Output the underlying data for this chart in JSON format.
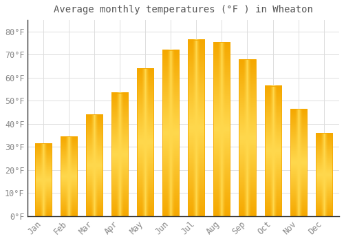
{
  "title": "Average monthly temperatures (°F ) in Wheaton",
  "months": [
    "Jan",
    "Feb",
    "Mar",
    "Apr",
    "May",
    "Jun",
    "Jul",
    "Aug",
    "Sep",
    "Oct",
    "Nov",
    "Dec"
  ],
  "values": [
    31.5,
    34.5,
    44.0,
    53.5,
    64.0,
    72.0,
    76.5,
    75.5,
    68.0,
    56.5,
    46.5,
    36.0
  ],
  "bar_color_center": "#FFD84D",
  "bar_color_edge": "#F5A800",
  "background_color": "#FFFFFF",
  "grid_color": "#DDDDDD",
  "text_color": "#888888",
  "spine_color": "#333333",
  "ylim": [
    0,
    85
  ],
  "yticks": [
    0,
    10,
    20,
    30,
    40,
    50,
    60,
    70,
    80
  ],
  "title_fontsize": 10,
  "tick_fontsize": 8.5,
  "bar_width": 0.65
}
